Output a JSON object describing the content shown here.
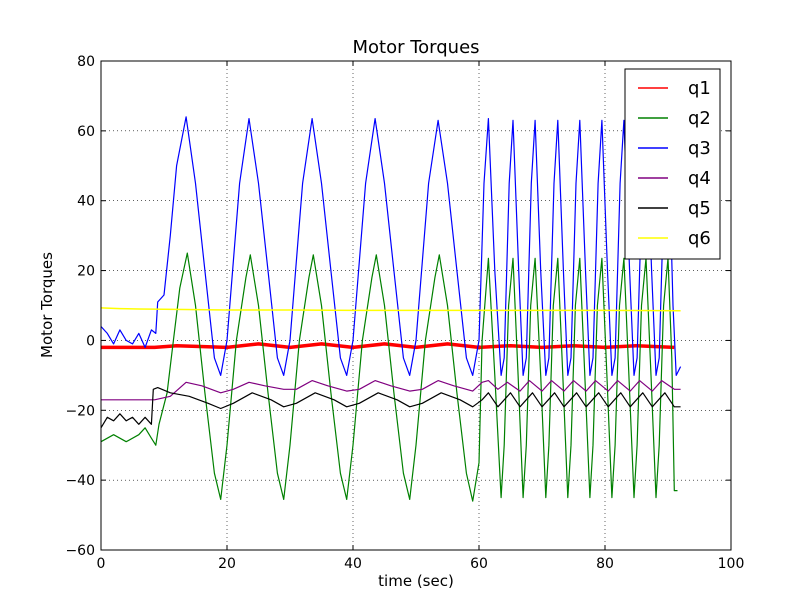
{
  "chart_data": {
    "type": "line",
    "title": "Motor Torques",
    "xlabel": "time (sec)",
    "ylabel": "Motor Torques",
    "xlim": [
      0,
      100
    ],
    "ylim": [
      -60,
      80
    ],
    "xticks": [
      0,
      20,
      40,
      60,
      80,
      100
    ],
    "yticks": [
      -60,
      -40,
      -20,
      0,
      20,
      40,
      60,
      80
    ],
    "xtick_labels": [
      "0",
      "20",
      "40",
      "60",
      "80",
      "100"
    ],
    "ytick_labels": [
      "−60",
      "−40",
      "−20",
      "0",
      "20",
      "40",
      "60",
      "80"
    ],
    "grid": true,
    "legend_position": "top-right",
    "series": [
      {
        "name": "q1",
        "color": "#ff0000",
        "line_width": 3.5,
        "points": [
          [
            0,
            -2
          ],
          [
            8.5,
            -2
          ],
          [
            12,
            -1.5
          ],
          [
            20,
            -2
          ],
          [
            25,
            -1
          ],
          [
            30,
            -2
          ],
          [
            35,
            -1
          ],
          [
            40,
            -2
          ],
          [
            45,
            -1
          ],
          [
            50,
            -2
          ],
          [
            55,
            -1
          ],
          [
            60,
            -2
          ],
          [
            65,
            -1.5
          ],
          [
            70,
            -2
          ],
          [
            75,
            -1.5
          ],
          [
            80,
            -2
          ],
          [
            85,
            -1.5
          ],
          [
            91,
            -2
          ]
        ]
      },
      {
        "name": "q2",
        "color": "#008000",
        "line_width": 1.2,
        "points": [
          [
            0,
            -29
          ],
          [
            2,
            -27
          ],
          [
            4,
            -29
          ],
          [
            6,
            -27
          ],
          [
            7,
            -25
          ],
          [
            8,
            -28
          ],
          [
            8.7,
            -30
          ],
          [
            9.2,
            -24
          ],
          [
            10.5,
            -15
          ],
          [
            11.5,
            0
          ],
          [
            12.5,
            15
          ],
          [
            13.7,
            25
          ],
          [
            15,
            10
          ],
          [
            16.5,
            -15
          ],
          [
            18,
            -38
          ],
          [
            19,
            -45.5
          ],
          [
            20,
            -30
          ],
          [
            21.5,
            0
          ],
          [
            23,
            18
          ],
          [
            23.7,
            24.5
          ],
          [
            25,
            10
          ],
          [
            26.5,
            -15
          ],
          [
            28,
            -38
          ],
          [
            29,
            -45.5
          ],
          [
            30,
            -30
          ],
          [
            31.5,
            0
          ],
          [
            33,
            18
          ],
          [
            33.7,
            24.5
          ],
          [
            35,
            10
          ],
          [
            36.5,
            -15
          ],
          [
            38,
            -38
          ],
          [
            39,
            -45.5
          ],
          [
            40,
            -30
          ],
          [
            41.5,
            0
          ],
          [
            43,
            18
          ],
          [
            43.7,
            24.5
          ],
          [
            45,
            10
          ],
          [
            46.5,
            -15
          ],
          [
            48,
            -38
          ],
          [
            49,
            -45.5
          ],
          [
            50,
            -30
          ],
          [
            51.5,
            0
          ],
          [
            53,
            18
          ],
          [
            53.7,
            24.5
          ],
          [
            55,
            10
          ],
          [
            56.5,
            -15
          ],
          [
            58,
            -38
          ],
          [
            59,
            -46
          ],
          [
            60,
            -35
          ],
          [
            60.5,
            0
          ],
          [
            61.5,
            23.5
          ],
          [
            62.5,
            -10
          ],
          [
            63.5,
            -45
          ],
          [
            64,
            -30
          ],
          [
            64.7,
            10
          ],
          [
            65.4,
            23.5
          ],
          [
            66.2,
            -10
          ],
          [
            67,
            -45
          ],
          [
            67.5,
            -30
          ],
          [
            68.2,
            10
          ],
          [
            68.9,
            23.5
          ],
          [
            69.8,
            -10
          ],
          [
            70.6,
            -45
          ],
          [
            71.1,
            -30
          ],
          [
            71.8,
            10
          ],
          [
            72.5,
            23.5
          ],
          [
            73.3,
            -10
          ],
          [
            74.1,
            -45
          ],
          [
            74.6,
            -30
          ],
          [
            75.3,
            10
          ],
          [
            76,
            23.5
          ],
          [
            76.8,
            -10
          ],
          [
            77.6,
            -45
          ],
          [
            78.1,
            -30
          ],
          [
            78.8,
            10
          ],
          [
            79.5,
            23.5
          ],
          [
            80.3,
            -10
          ],
          [
            81.1,
            -45
          ],
          [
            81.6,
            -30
          ],
          [
            82.3,
            10
          ],
          [
            83,
            23.5
          ],
          [
            83.8,
            -10
          ],
          [
            84.6,
            -45
          ],
          [
            85.1,
            -30
          ],
          [
            85.8,
            10
          ],
          [
            86.5,
            23.5
          ],
          [
            87.3,
            -10
          ],
          [
            88.1,
            -45
          ],
          [
            88.6,
            -30
          ],
          [
            89.3,
            10
          ],
          [
            90,
            23.5
          ],
          [
            90.6,
            -5
          ],
          [
            91,
            -43
          ],
          [
            91.5,
            -43
          ]
        ]
      },
      {
        "name": "q3",
        "color": "#0000ff",
        "line_width": 1.2,
        "points": [
          [
            0,
            4
          ],
          [
            1,
            2
          ],
          [
            2,
            -1
          ],
          [
            3,
            3
          ],
          [
            4,
            0
          ],
          [
            5,
            -1
          ],
          [
            6,
            2
          ],
          [
            7,
            -2
          ],
          [
            8,
            3
          ],
          [
            8.7,
            2
          ],
          [
            9,
            11
          ],
          [
            10,
            13
          ],
          [
            11,
            30
          ],
          [
            12,
            50
          ],
          [
            13.5,
            64
          ],
          [
            15,
            45
          ],
          [
            16.5,
            20
          ],
          [
            18,
            -5
          ],
          [
            19,
            -10
          ],
          [
            20,
            0
          ],
          [
            22,
            45
          ],
          [
            23.5,
            63.5
          ],
          [
            25,
            45
          ],
          [
            26.5,
            20
          ],
          [
            28,
            -5
          ],
          [
            29,
            -10
          ],
          [
            30,
            0
          ],
          [
            32,
            45
          ],
          [
            33.5,
            63.5
          ],
          [
            35,
            45
          ],
          [
            36.5,
            20
          ],
          [
            38,
            -5
          ],
          [
            39,
            -10
          ],
          [
            40,
            0
          ],
          [
            42,
            45
          ],
          [
            43.5,
            63.5
          ],
          [
            45,
            45
          ],
          [
            46.5,
            20
          ],
          [
            48,
            -5
          ],
          [
            49,
            -10
          ],
          [
            50,
            0
          ],
          [
            52,
            45
          ],
          [
            53.5,
            63
          ],
          [
            55,
            45
          ],
          [
            56.5,
            20
          ],
          [
            58,
            -5
          ],
          [
            59,
            -10
          ],
          [
            60,
            0
          ],
          [
            60.8,
            45
          ],
          [
            61.5,
            63.5
          ],
          [
            62.5,
            20
          ],
          [
            63.5,
            -10
          ],
          [
            64,
            -5
          ],
          [
            64.8,
            45
          ],
          [
            65.4,
            63
          ],
          [
            66.3,
            20
          ],
          [
            67,
            -10
          ],
          [
            67.5,
            -5
          ],
          [
            68.3,
            45
          ],
          [
            68.9,
            63
          ],
          [
            69.8,
            20
          ],
          [
            70.6,
            -10
          ],
          [
            71.1,
            -5
          ],
          [
            71.9,
            45
          ],
          [
            72.5,
            63
          ],
          [
            73.4,
            20
          ],
          [
            74.1,
            -10
          ],
          [
            74.6,
            -5
          ],
          [
            75.4,
            45
          ],
          [
            76,
            63
          ],
          [
            76.9,
            20
          ],
          [
            77.6,
            -10
          ],
          [
            78.1,
            -5
          ],
          [
            78.9,
            45
          ],
          [
            79.5,
            63
          ],
          [
            80.4,
            20
          ],
          [
            81.1,
            -10
          ],
          [
            81.6,
            -5
          ],
          [
            82.4,
            45
          ],
          [
            83,
            63
          ],
          [
            83.9,
            20
          ],
          [
            84.6,
            -10
          ],
          [
            85.1,
            -5
          ],
          [
            85.9,
            45
          ],
          [
            86.5,
            63
          ],
          [
            87.4,
            20
          ],
          [
            88.1,
            -10
          ],
          [
            88.6,
            -5
          ],
          [
            89.4,
            45
          ],
          [
            90,
            63
          ],
          [
            90.8,
            10
          ],
          [
            91.3,
            -10
          ],
          [
            92,
            -7.5
          ]
        ]
      },
      {
        "name": "q4",
        "color": "#800080",
        "line_width": 1.2,
        "points": [
          [
            0,
            -17
          ],
          [
            8.5,
            -17
          ],
          [
            11,
            -16
          ],
          [
            13.5,
            -12
          ],
          [
            16,
            -13
          ],
          [
            19,
            -15
          ],
          [
            21,
            -14
          ],
          [
            23.5,
            -12
          ],
          [
            26,
            -13
          ],
          [
            29,
            -14
          ],
          [
            31,
            -14
          ],
          [
            33.5,
            -11.5
          ],
          [
            36,
            -13
          ],
          [
            39,
            -14.5
          ],
          [
            41,
            -14
          ],
          [
            43.5,
            -11.5
          ],
          [
            46,
            -13
          ],
          [
            49,
            -14.5
          ],
          [
            51,
            -14
          ],
          [
            53.5,
            -11.5
          ],
          [
            56,
            -13
          ],
          [
            59,
            -14.5
          ],
          [
            60.5,
            -12
          ],
          [
            61.5,
            -11.5
          ],
          [
            63,
            -14
          ],
          [
            64.5,
            -12
          ],
          [
            66.5,
            -14.5
          ],
          [
            68,
            -11.5
          ],
          [
            70,
            -14.5
          ],
          [
            71.5,
            -11.5
          ],
          [
            73.5,
            -14.5
          ],
          [
            75,
            -11.5
          ],
          [
            77,
            -14.5
          ],
          [
            78.5,
            -11.5
          ],
          [
            80.5,
            -14.5
          ],
          [
            82,
            -11.5
          ],
          [
            84,
            -14.5
          ],
          [
            85.5,
            -11.5
          ],
          [
            87.5,
            -14.5
          ],
          [
            89,
            -11.5
          ],
          [
            91,
            -14
          ],
          [
            92,
            -14
          ]
        ]
      },
      {
        "name": "q5",
        "color": "#000000",
        "line_width": 1.2,
        "points": [
          [
            0,
            -25
          ],
          [
            1,
            -22
          ],
          [
            2,
            -23
          ],
          [
            3,
            -21
          ],
          [
            4,
            -23
          ],
          [
            5,
            -22
          ],
          [
            6,
            -24
          ],
          [
            7,
            -22
          ],
          [
            8,
            -24
          ],
          [
            8.3,
            -14
          ],
          [
            9,
            -13.5
          ],
          [
            11,
            -15
          ],
          [
            14,
            -16
          ],
          [
            17,
            -18
          ],
          [
            19,
            -19.5
          ],
          [
            21,
            -18
          ],
          [
            24,
            -15
          ],
          [
            27,
            -17
          ],
          [
            29,
            -19
          ],
          [
            31,
            -18
          ],
          [
            34,
            -15
          ],
          [
            37,
            -17
          ],
          [
            39,
            -19
          ],
          [
            41,
            -18
          ],
          [
            44,
            -15
          ],
          [
            47,
            -17
          ],
          [
            49,
            -19
          ],
          [
            51,
            -18
          ],
          [
            54,
            -15
          ],
          [
            57,
            -17
          ],
          [
            59,
            -19
          ],
          [
            60.5,
            -17
          ],
          [
            61.5,
            -15
          ],
          [
            63,
            -19
          ],
          [
            64.5,
            -16
          ],
          [
            65,
            -15
          ],
          [
            66.5,
            -19
          ],
          [
            68,
            -16
          ],
          [
            68.5,
            -15
          ],
          [
            70,
            -19
          ],
          [
            71.5,
            -16
          ],
          [
            72,
            -15
          ],
          [
            73.5,
            -19
          ],
          [
            75,
            -16
          ],
          [
            75.5,
            -15
          ],
          [
            77,
            -19
          ],
          [
            78.5,
            -16
          ],
          [
            79,
            -15
          ],
          [
            80.5,
            -19
          ],
          [
            82,
            -16
          ],
          [
            82.5,
            -15
          ],
          [
            84,
            -19
          ],
          [
            85.5,
            -16
          ],
          [
            86,
            -15
          ],
          [
            87.5,
            -19
          ],
          [
            89,
            -16
          ],
          [
            89.5,
            -15
          ],
          [
            91,
            -19
          ],
          [
            92,
            -19
          ]
        ]
      },
      {
        "name": "q6",
        "color": "#ffff00",
        "line_width": 1.5,
        "points": [
          [
            0,
            9.3
          ],
          [
            3,
            9.1
          ],
          [
            6,
            9.0
          ],
          [
            10,
            8.9
          ],
          [
            20,
            8.7
          ],
          [
            30,
            8.7
          ],
          [
            40,
            8.6
          ],
          [
            50,
            8.6
          ],
          [
            60,
            8.6
          ],
          [
            70,
            8.6
          ],
          [
            80,
            8.6
          ],
          [
            92,
            8.5
          ]
        ]
      }
    ]
  }
}
